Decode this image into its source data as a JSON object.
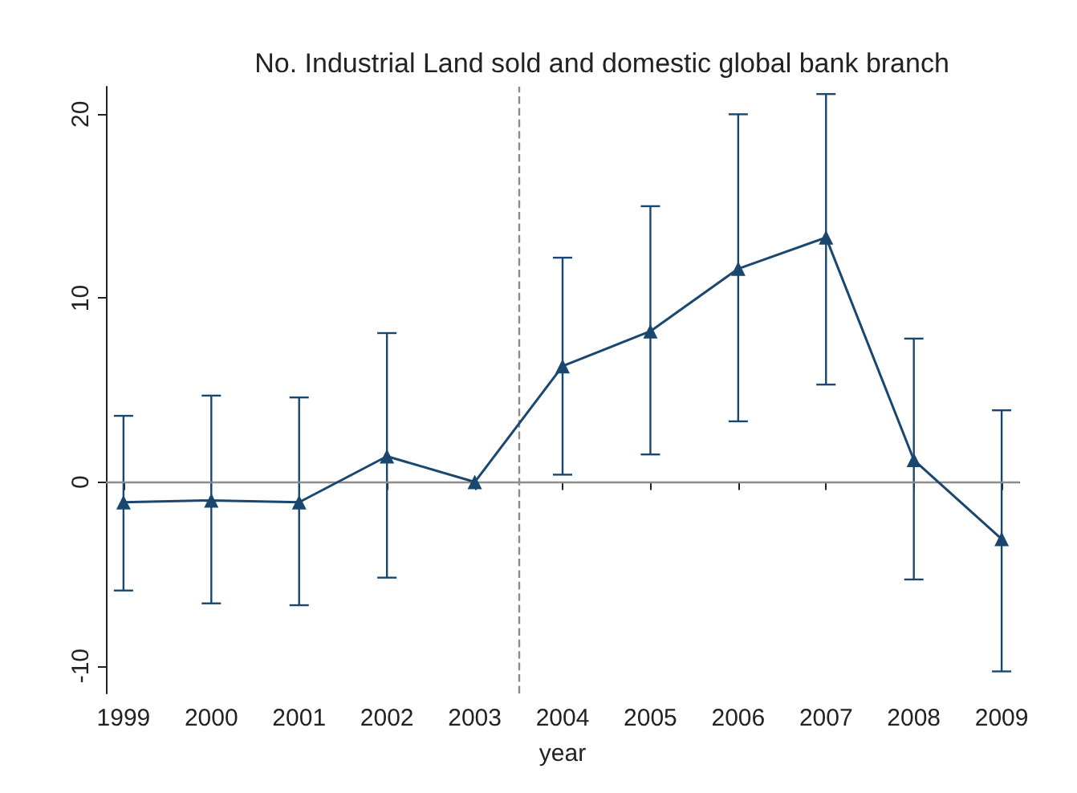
{
  "chart_data": {
    "type": "line",
    "title": "No. Industrial Land sold and domestic global bank branch",
    "xlabel": "year",
    "x": [
      1999,
      2000,
      2001,
      2002,
      2003,
      2004,
      2005,
      2006,
      2007,
      2008,
      2009
    ],
    "series": [
      {
        "color": "#1a476f",
        "values": [
          -1.1,
          -1.0,
          -1.1,
          1.4,
          0,
          6.3,
          8.2,
          11.6,
          13.3,
          1.2,
          -3.1
        ],
        "errors": [
          [
            -5.9,
            3.6
          ],
          [
            -6.6,
            4.7
          ],
          [
            -6.7,
            4.6
          ],
          [
            -5.2,
            8.1
          ],
          null,
          [
            0.4,
            12.2
          ],
          [
            1.5,
            15.0
          ],
          [
            3.3,
            20.0
          ],
          [
            5.3,
            21.1
          ],
          [
            -5.3,
            7.8
          ],
          [
            -10.3,
            3.9
          ]
        ]
      }
    ],
    "xlim": [
      1998.8,
      2009.2
    ],
    "xticks": [
      1999,
      2000,
      2001,
      2002,
      2003,
      2004,
      2005,
      2006,
      2007,
      2008,
      2009
    ],
    "ylim": [
      -11.5,
      21.5
    ],
    "yticks": [
      -10,
      0,
      10,
      20
    ],
    "ref_lines": [
      {
        "axis": "y",
        "value": 0,
        "color": "#8c8c8c",
        "line_style": "solid"
      },
      {
        "axis": "x",
        "value": 2003.5,
        "color": "#8c8c8c",
        "line_style": "dashed"
      }
    ],
    "marker": "triangle"
  }
}
